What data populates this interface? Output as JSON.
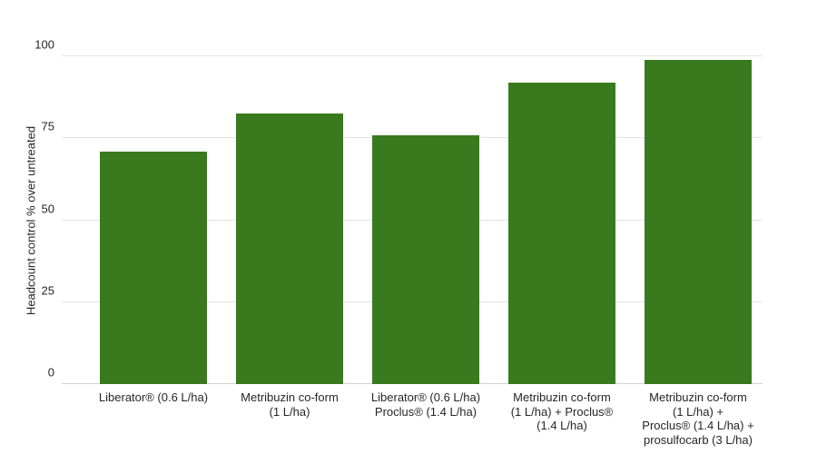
{
  "chart_data": {
    "type": "bar",
    "title": "",
    "xlabel": "",
    "ylabel": "Headcount control % over untreated",
    "ylim": [
      0,
      100
    ],
    "yticks": [
      "0",
      "25",
      "50",
      "75",
      "100"
    ],
    "grid": true,
    "legend_position": "none",
    "bar_color": "#3a7a1e",
    "gridline_color": "#e4e4e4",
    "text_color": "#262626",
    "categories": [
      "Liberator® (0.6 L/ha)",
      "Metribuzin co-form\n(1 L/ha)",
      "Liberator® (0.6 L/ha)\nProclus® (1.4 L/ha)",
      "Metribuzin co-form\n(1 L/ha) + Proclus®\n(1.4 L/ha)",
      "Metribuzin co-form\n(1 L/ha) +\nProclus® (1.4 L/ha) +\nprosulfocarb (3 L/ha)"
    ],
    "values": [
      71,
      82.5,
      76,
      92,
      99
    ]
  }
}
